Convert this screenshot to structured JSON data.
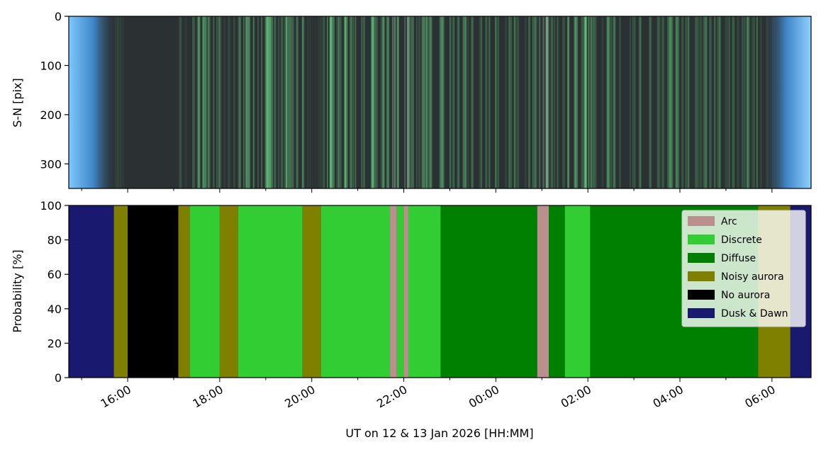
{
  "chart_data": [
    {
      "type": "heatmap",
      "description": "keogram",
      "ylabel": "S-N [pix]",
      "ylim": [
        350,
        0
      ],
      "y_ticks": [
        "0",
        "100",
        "200",
        "300"
      ],
      "y_tick_values": [
        0,
        100,
        200,
        300
      ]
    },
    {
      "type": "area",
      "stacked": true,
      "ylabel": "Probability [%]",
      "xlabel": "UT on 12 & 13 Jan 2026 [HH:MM]",
      "ylim": [
        0,
        100
      ],
      "y_ticks": [
        "0",
        "20",
        "40",
        "60",
        "80",
        "100"
      ],
      "y_tick_values": [
        0,
        20,
        40,
        60,
        80,
        100
      ],
      "x_ticks": [
        "16:00",
        "18:00",
        "20:00",
        "22:00",
        "00:00",
        "02:00",
        "04:00",
        "06:00"
      ],
      "x_tick_hours": [
        16,
        18,
        20,
        22,
        24,
        26,
        28,
        30
      ],
      "xlim_hours": [
        14.72,
        30.85
      ],
      "legend_position": "upper-right",
      "series": [
        {
          "name": "Arc",
          "color": "#bc8f8f"
        },
        {
          "name": "Discrete",
          "color": "#32cd32"
        },
        {
          "name": "Diffuse",
          "color": "#008000"
        },
        {
          "name": "Noisy aurora",
          "color": "#808000"
        },
        {
          "name": "No aurora",
          "color": "#000000"
        },
        {
          "name": "Dusk & Dawn",
          "color": "#191970"
        }
      ],
      "segments": [
        {
          "start": 14.72,
          "end": 15.7,
          "class": "Dusk & Dawn"
        },
        {
          "start": 15.7,
          "end": 16.0,
          "class": "Noisy aurora"
        },
        {
          "start": 16.0,
          "end": 17.1,
          "class": "No aurora"
        },
        {
          "start": 17.1,
          "end": 17.35,
          "class": "Noisy aurora"
        },
        {
          "start": 17.35,
          "end": 18.0,
          "class": "Discrete"
        },
        {
          "start": 18.0,
          "end": 18.4,
          "class": "Noisy aurora"
        },
        {
          "start": 18.4,
          "end": 19.8,
          "class": "Discrete"
        },
        {
          "start": 19.8,
          "end": 20.2,
          "class": "Noisy aurora"
        },
        {
          "start": 20.2,
          "end": 21.7,
          "class": "Discrete"
        },
        {
          "start": 21.7,
          "end": 21.85,
          "class": "Arc"
        },
        {
          "start": 21.85,
          "end": 22.0,
          "class": "Discrete"
        },
        {
          "start": 22.0,
          "end": 22.1,
          "class": "Arc"
        },
        {
          "start": 22.1,
          "end": 22.8,
          "class": "Discrete"
        },
        {
          "start": 22.8,
          "end": 24.9,
          "class": "Diffuse"
        },
        {
          "start": 24.9,
          "end": 25.15,
          "class": "Arc"
        },
        {
          "start": 25.15,
          "end": 25.5,
          "class": "Diffuse"
        },
        {
          "start": 25.5,
          "end": 26.05,
          "class": "Discrete"
        },
        {
          "start": 26.05,
          "end": 29.7,
          "class": "Diffuse"
        },
        {
          "start": 29.7,
          "end": 30.4,
          "class": "Noisy aurora"
        },
        {
          "start": 30.4,
          "end": 30.85,
          "class": "Dusk & Dawn"
        }
      ]
    }
  ]
}
